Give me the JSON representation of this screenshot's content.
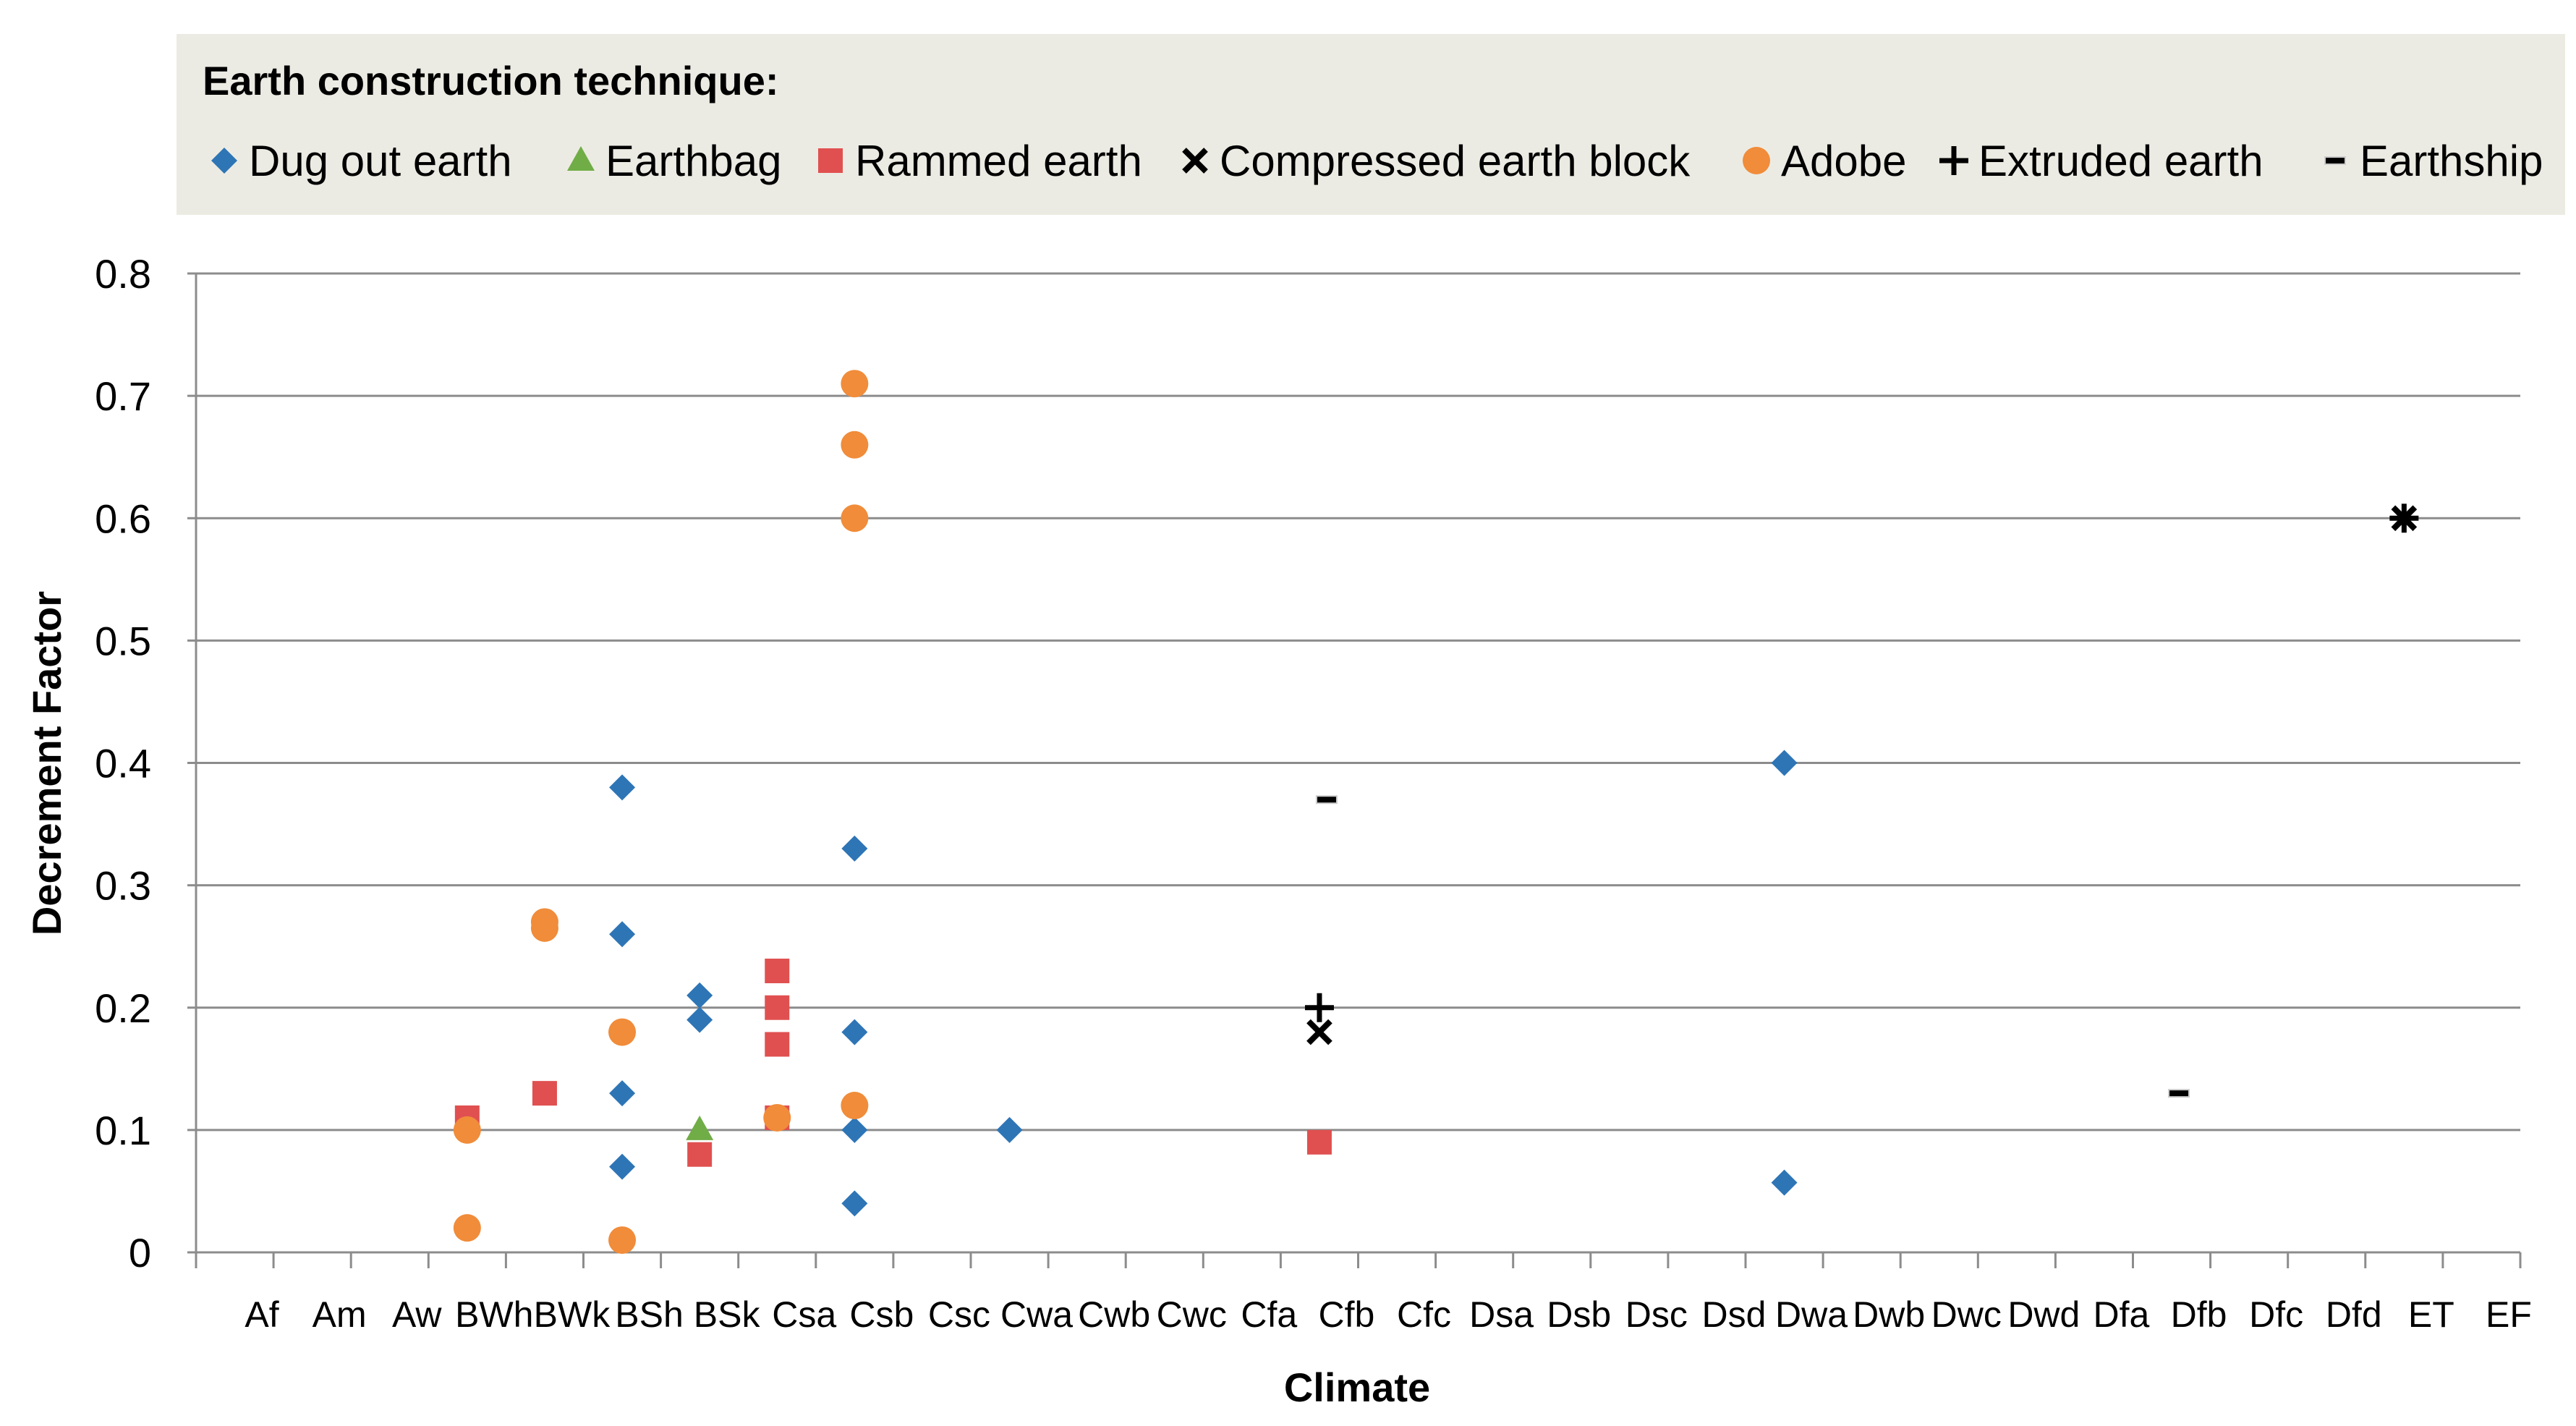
{
  "chart_data": {
    "type": "scatter",
    "title": "",
    "xlabel": "Climate",
    "ylabel": "Decrement Factor",
    "ylim": [
      0,
      0.8
    ],
    "yticks": [
      0,
      0.1,
      0.2,
      0.3,
      0.4,
      0.5,
      0.6,
      0.7,
      0.8
    ],
    "ytick_labels": [
      "0",
      "0.1",
      "0.2",
      "0.3",
      "0.4",
      "0.5",
      "0.6",
      "0.7",
      "0.8"
    ],
    "grid": true,
    "legend_position": "top",
    "legend_title": "Earth construction technique:",
    "categories": [
      "Af",
      "Am",
      "Aw",
      "BWh",
      "BWk",
      "BSh",
      "BSk",
      "Csa",
      "Csb",
      "Csc",
      "Cwa",
      "Cwb",
      "Cwc",
      "Cfa",
      "Cfb",
      "Cfc",
      "Dsa",
      "Dsb",
      "Dsc",
      "Dsd",
      "Dwa",
      "Dwb",
      "Dwc",
      "Dwd",
      "Dfa",
      "Dfb",
      "Dfc",
      "Dfd",
      "ET",
      "EF"
    ],
    "series": [
      {
        "name": "Dug out earth",
        "marker": "diamond",
        "color": "#2e75b6",
        "points": [
          [
            "BSh",
            0.38
          ],
          [
            "BSh",
            0.26
          ],
          [
            "BSh",
            0.13
          ],
          [
            "BSh",
            0.07
          ],
          [
            "BSk",
            0.21
          ],
          [
            "BSk",
            0.19
          ],
          [
            "Csb",
            0.33
          ],
          [
            "Csb",
            0.18
          ],
          [
            "Csb",
            0.1
          ],
          [
            "Csb",
            0.04
          ],
          [
            "Cwa",
            0.1
          ],
          [
            "Dwa",
            0.4
          ],
          [
            "Dwa",
            0.057
          ]
        ]
      },
      {
        "name": "Earthbag",
        "marker": "triangle",
        "color": "#70ad47",
        "points": [
          [
            "BSk",
            0.1
          ]
        ]
      },
      {
        "name": "Rammed earth",
        "marker": "square",
        "color": "#e05050",
        "points": [
          [
            "BWh",
            0.11
          ],
          [
            "BWk",
            0.13
          ],
          [
            "BSk",
            0.08
          ],
          [
            "Csa",
            0.23
          ],
          [
            "Csa",
            0.2
          ],
          [
            "Csa",
            0.17
          ],
          [
            "Csa",
            0.11
          ],
          [
            "Cfb",
            0.09
          ]
        ]
      },
      {
        "name": "Compressed earth block",
        "marker": "x",
        "color": "#000000",
        "points": [
          [
            "Cfb",
            0.18
          ],
          [
            "ET",
            0.6
          ]
        ]
      },
      {
        "name": "Adobe",
        "marker": "circle",
        "color": "#f08c3a",
        "points": [
          [
            "BWh",
            0.1
          ],
          [
            "BWh",
            0.02
          ],
          [
            "BWk",
            0.27
          ],
          [
            "BWk",
            0.265
          ],
          [
            "BSh",
            0.18
          ],
          [
            "BSh",
            0.01
          ],
          [
            "Csa",
            0.11
          ],
          [
            "Csb",
            0.71
          ],
          [
            "Csb",
            0.66
          ],
          [
            "Csb",
            0.6
          ],
          [
            "Csb",
            0.12
          ]
        ]
      },
      {
        "name": "Extruded earth",
        "marker": "plus",
        "color": "#000000",
        "points": [
          [
            "Cfb",
            0.2
          ],
          [
            "ET",
            0.6
          ]
        ]
      },
      {
        "name": "Earthship",
        "marker": "dash",
        "color": "#000000",
        "points": [
          [
            "Cfb",
            0.37
          ],
          [
            "Dfb",
            0.13
          ]
        ]
      }
    ]
  }
}
